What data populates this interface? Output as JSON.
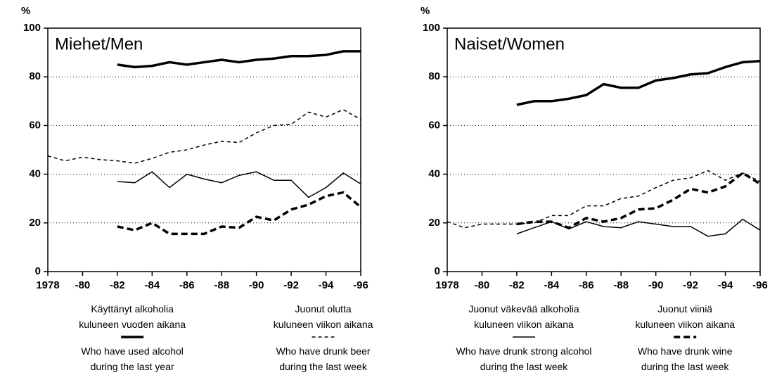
{
  "chart_data": [
    {
      "type": "line",
      "title": "Miehet/Men",
      "y_label": "%",
      "x": [
        1978,
        1979,
        1980,
        1981,
        1982,
        1983,
        1984,
        1985,
        1986,
        1987,
        1988,
        1989,
        1990,
        1991,
        1992,
        1993,
        1994,
        1995,
        1996
      ],
      "xlim": [
        1978,
        1996
      ],
      "xticks": [
        1978,
        {
          "value": 1980,
          "label": "-80"
        },
        {
          "value": 1982,
          "label": "-82"
        },
        {
          "value": 1984,
          "label": "-84"
        },
        {
          "value": 1986,
          "label": "-86"
        },
        {
          "value": 1988,
          "label": "-88"
        },
        {
          "value": 1990,
          "label": "-90"
        },
        {
          "value": 1992,
          "label": "-92"
        },
        {
          "value": 1994,
          "label": "-94"
        },
        {
          "value": 1996,
          "label": "-96"
        }
      ],
      "ylim": [
        0,
        100
      ],
      "yticks": [
        0,
        20,
        40,
        60,
        80,
        100
      ],
      "grid": true,
      "series": [
        {
          "name": "Käyttänyt alkoholia\nkuluneen vuoden aikana",
          "name_en": "Who have used alcohol\nduring the last year",
          "color": "#000000",
          "line_width": 3.5,
          "dash": "none",
          "values": [
            null,
            null,
            null,
            null,
            85,
            84,
            84.5,
            86,
            85,
            86,
            87,
            86,
            87,
            87.5,
            88.5,
            88.5,
            89,
            90.5,
            90.5
          ]
        },
        {
          "name": "Juonut olutta\nkuluneen viikon aikana",
          "name_en": "Who have drunk beer\nduring the last week",
          "color": "#000000",
          "line_width": 1.5,
          "dash": "5,4",
          "values": [
            47.5,
            45.5,
            47,
            46,
            45.5,
            44.5,
            46.5,
            49,
            50,
            52,
            53.5,
            53,
            57,
            60,
            60.5,
            65.5,
            63.5,
            66.5,
            62.5
          ]
        },
        {
          "color": "#000000",
          "line_width": 1.5,
          "dash": "none",
          "values": [
            null,
            null,
            null,
            null,
            37,
            36.5,
            41,
            34.5,
            40,
            38,
            36.5,
            39.5,
            41,
            37.5,
            37.5,
            30.5,
            34.5,
            40.5,
            36
          ]
        },
        {
          "color": "#000000",
          "line_width": 3.5,
          "dash": "9,5",
          "values": [
            null,
            null,
            null,
            null,
            18.5,
            17,
            20,
            15.5,
            15.5,
            15.5,
            18.5,
            18,
            22.5,
            21,
            25.5,
            27.5,
            31,
            32.5,
            26.5
          ]
        }
      ]
    },
    {
      "type": "line",
      "title": "Naiset/Women",
      "y_label": "%",
      "x": [
        1978,
        1979,
        1980,
        1981,
        1982,
        1983,
        1984,
        1985,
        1986,
        1987,
        1988,
        1989,
        1990,
        1991,
        1992,
        1993,
        1994,
        1995,
        1996
      ],
      "xlim": [
        1978,
        1996
      ],
      "xticks": [
        1978,
        {
          "value": 1980,
          "label": "-80"
        },
        {
          "value": 1982,
          "label": "-82"
        },
        {
          "value": 1984,
          "label": "-84"
        },
        {
          "value": 1986,
          "label": "-86"
        },
        {
          "value": 1988,
          "label": "-88"
        },
        {
          "value": 1990,
          "label": "-90"
        },
        {
          "value": 1992,
          "label": "-92"
        },
        {
          "value": 1994,
          "label": "-94"
        },
        {
          "value": 1996,
          "label": "-96"
        }
      ],
      "ylim": [
        0,
        100
      ],
      "yticks": [
        0,
        20,
        40,
        60,
        80,
        100
      ],
      "grid": true,
      "series": [
        {
          "color": "#000000",
          "line_width": 3.5,
          "dash": "none",
          "values": [
            null,
            null,
            null,
            null,
            68.5,
            70,
            70,
            71,
            72.5,
            77,
            75.5,
            75.5,
            78.5,
            79.5,
            81,
            81.5,
            84,
            86,
            86.5
          ]
        },
        {
          "color": "#000000",
          "line_width": 1.5,
          "dash": "5,4",
          "values": [
            20.5,
            18,
            19.5,
            19.5,
            19.5,
            20,
            23,
            23,
            27,
            27,
            30,
            31,
            34.5,
            37.5,
            38.5,
            41.5,
            37.5,
            40.5,
            37
          ]
        },
        {
          "name": "Juonut väkevää alkoholia\nkuluneen viikon aikana",
          "name_en": "Who have drunk strong alcohol\nduring the last week",
          "color": "#000000",
          "line_width": 1.5,
          "dash": "none",
          "values": [
            null,
            null,
            null,
            null,
            15.5,
            18,
            20.5,
            17.5,
            20.5,
            18.5,
            18,
            20.5,
            19.5,
            18.5,
            18.5,
            14.5,
            15.5,
            21.5,
            17
          ]
        },
        {
          "name": "Juonut viiniä\nkuluneen viikon aikana",
          "name_en": "Who have drunk wine\nduring the last week",
          "color": "#000000",
          "line_width": 3.5,
          "dash": "9,5",
          "values": [
            null,
            null,
            null,
            null,
            19.5,
            20.5,
            20.5,
            18,
            22,
            20.5,
            22,
            25.5,
            26,
            29.5,
            34,
            32.5,
            35,
            40.5,
            36
          ]
        }
      ]
    }
  ]
}
